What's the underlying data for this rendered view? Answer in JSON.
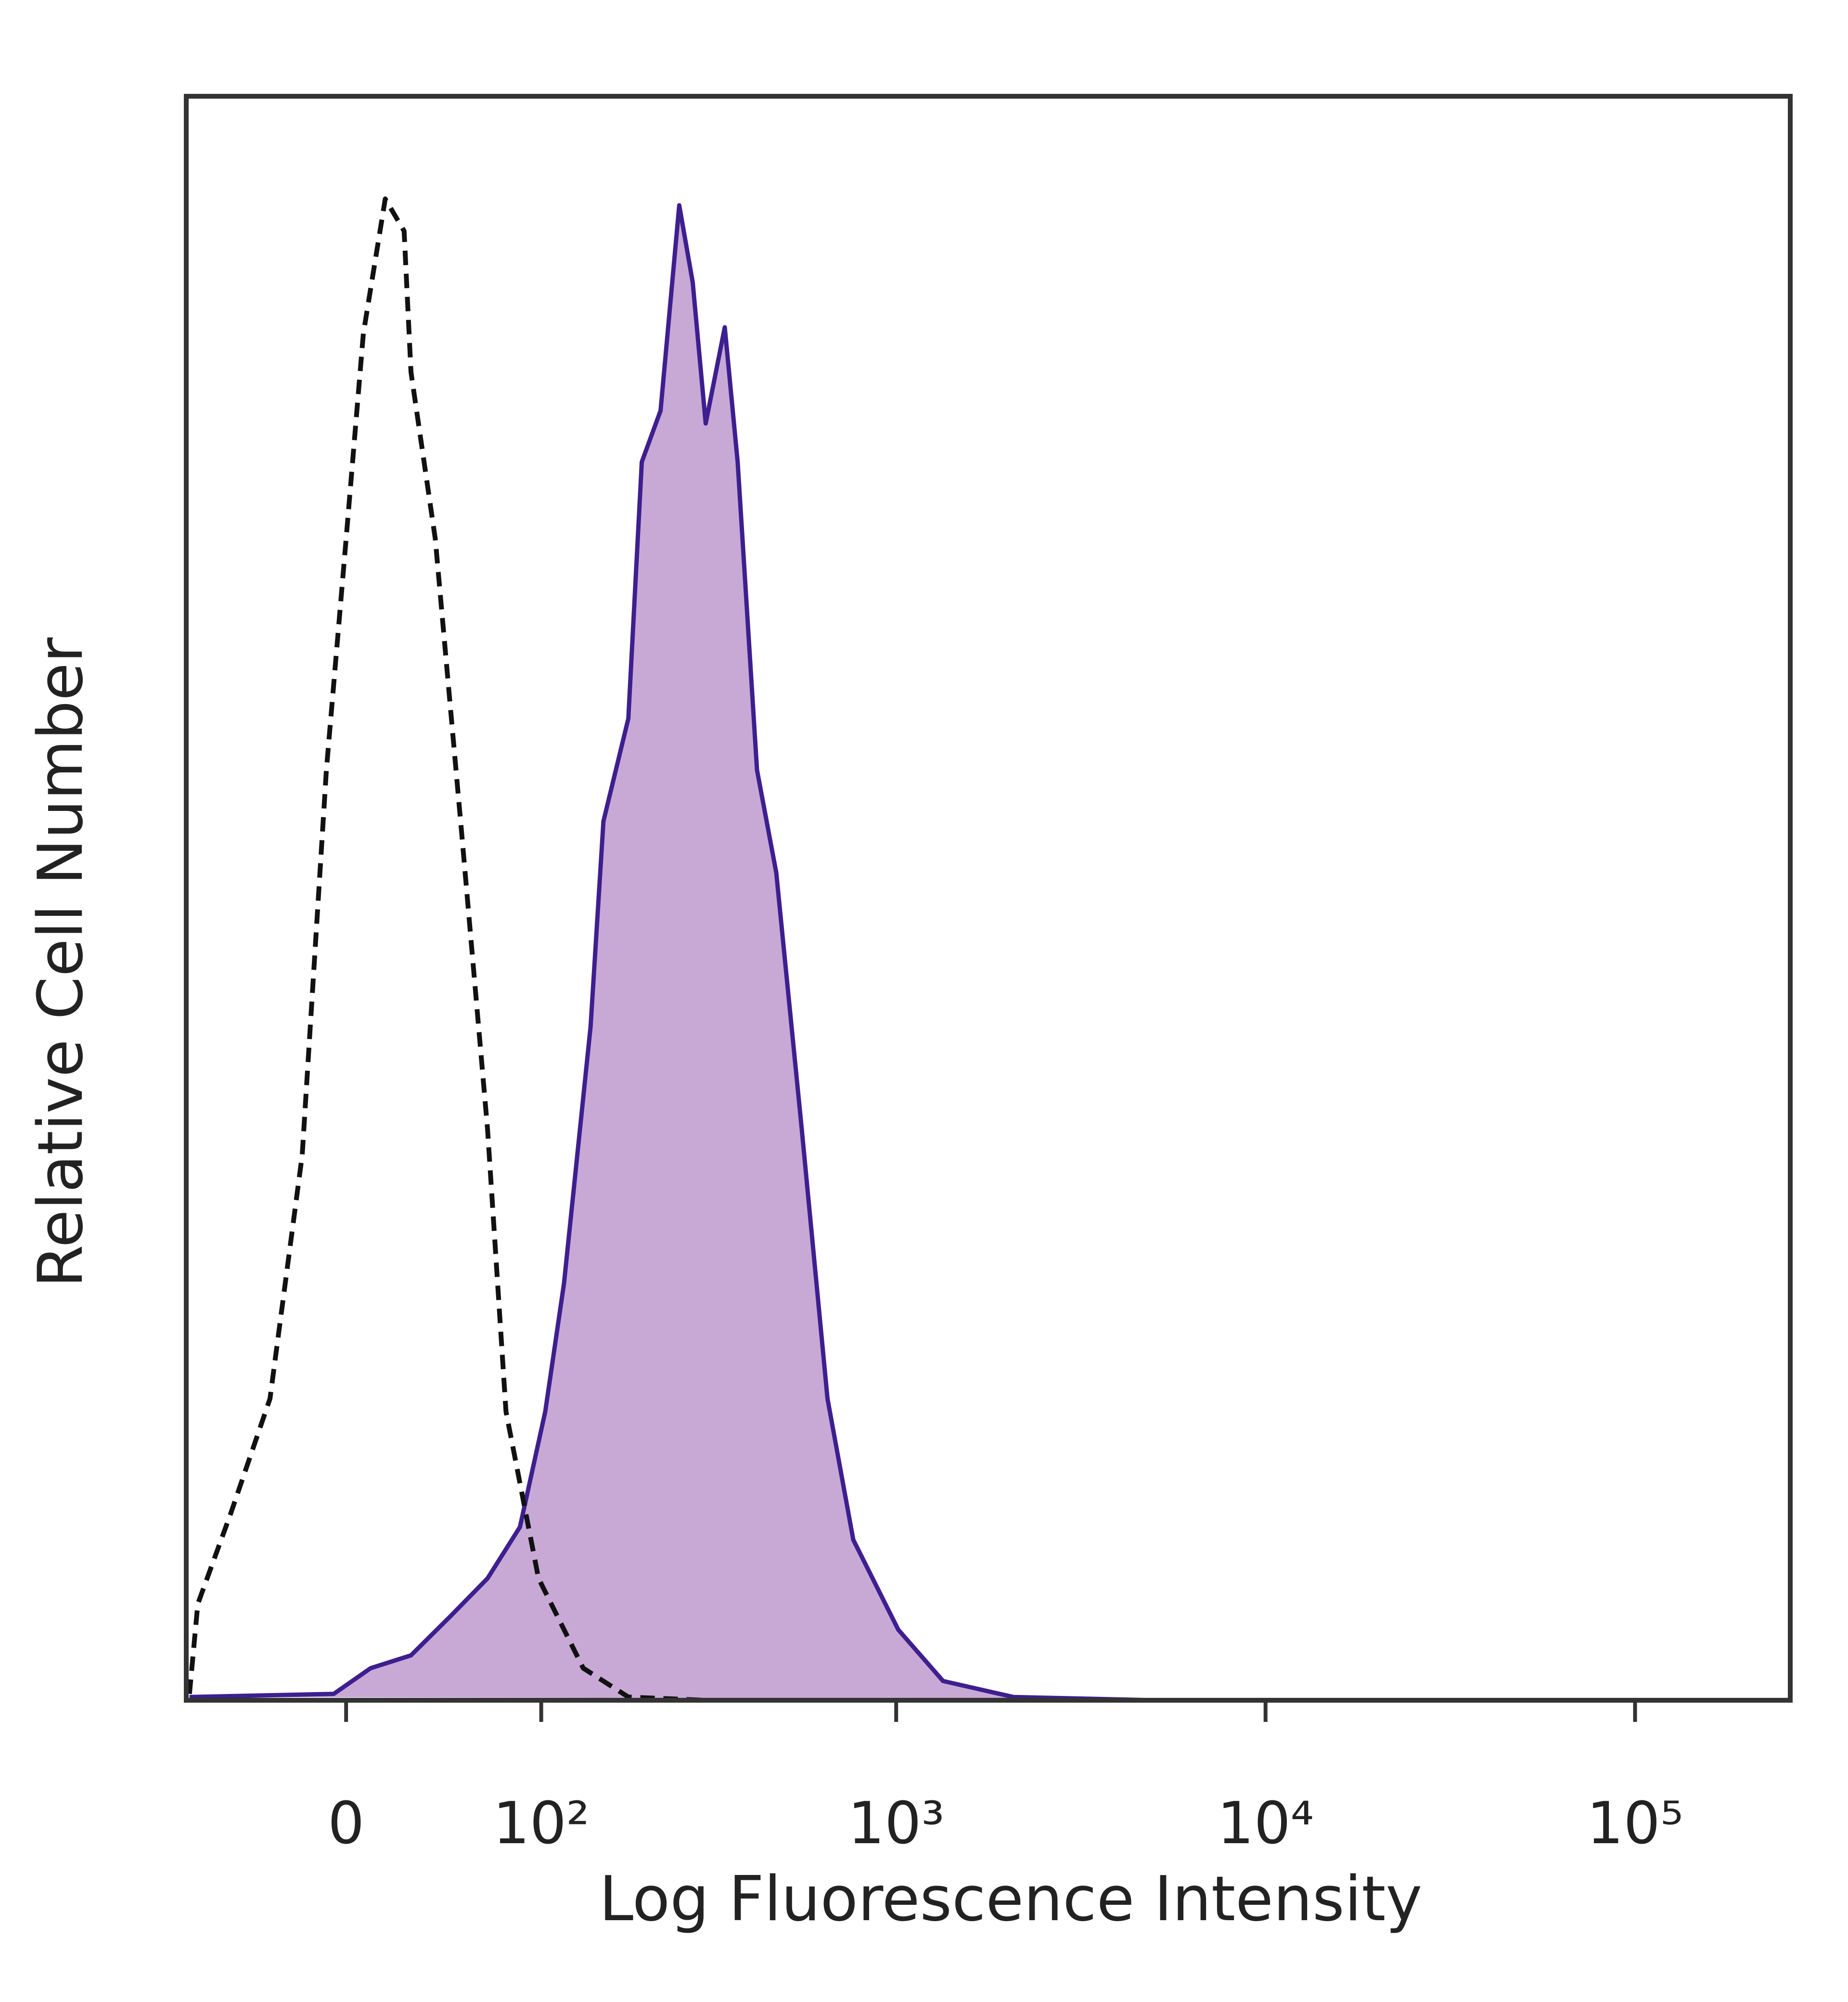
{
  "chart_data": {
    "type": "histogram-overlay",
    "xlabel": "Log Fluorescence Intensity",
    "ylabel": "Relative Cell Number",
    "xscale": "biexponential",
    "xlim": [
      -76,
      263000
    ],
    "ylim": [
      0,
      100
    ],
    "xticks": [
      0,
      {
        "value": 100,
        "label": "10²"
      },
      {
        "value": 1000,
        "label": "10³"
      },
      {
        "value": 10000,
        "label": "10⁴"
      },
      {
        "value": 100000,
        "label": "10⁵"
      }
    ],
    "series": [
      {
        "style": "dashed",
        "color": "#111111",
        "x": [
          -74,
          -69,
          -51,
          -32,
          -18,
          -8,
          0,
          7,
          16,
          24,
          27,
          38,
          51,
          65,
          76,
          98,
          135,
          183,
          302
        ],
        "values": [
          0.4,
          6,
          11.6,
          18.8,
          34,
          58,
          72.4,
          85.2,
          93.6,
          91.6,
          82.8,
          72.4,
          54,
          35.6,
          18,
          7.6,
          2,
          0.2,
          0
        ]
      },
      {
        "style": "filled",
        "color": "#3d1f8f",
        "fill": "#c8a9d6",
        "x": [
          -74,
          -5,
          10,
          27,
          45,
          65,
          85,
          103,
          118,
          142,
          155,
          183,
          200,
          226,
          255,
          278,
          302,
          341,
          370,
          418,
          472,
          554,
          651,
          765,
          1013,
          1340,
          2080,
          5018,
          263000
        ],
        "values": [
          0.2,
          0.4,
          2,
          2.8,
          5.2,
          7.6,
          10.8,
          18,
          26,
          42,
          54.8,
          61.2,
          77.2,
          80.4,
          93.2,
          88.4,
          79.6,
          85.6,
          77.2,
          58,
          51.6,
          35.6,
          18.8,
          10,
          4.4,
          1.2,
          0.2,
          0,
          0
        ]
      }
    ]
  }
}
